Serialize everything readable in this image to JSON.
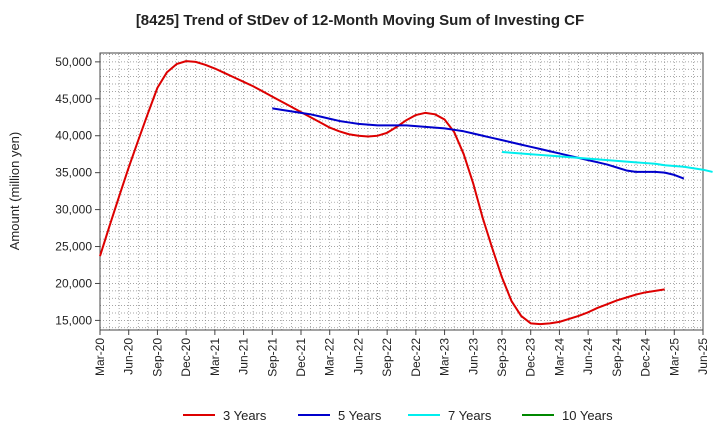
{
  "chart_data": {
    "type": "line",
    "title": "[8425]  Trend of StDev of 12-Month Moving Sum of Investing CF",
    "ylabel": "Amount (million yen)",
    "xlabel": "",
    "ylim": [
      13700,
      51200
    ],
    "y_ticks": [
      15000,
      20000,
      25000,
      30000,
      35000,
      40000,
      45000,
      50000
    ],
    "y_tick_labels": [
      "15,000",
      "20,000",
      "25,000",
      "30,000",
      "35,000",
      "40,000",
      "45,000",
      "50,000"
    ],
    "x_ticks": [
      "Mar-20",
      "Jun-20",
      "Sep-20",
      "Dec-20",
      "Mar-21",
      "Jun-21",
      "Sep-21",
      "Dec-21",
      "Mar-22",
      "Jun-22",
      "Sep-22",
      "Dec-22",
      "Mar-23",
      "Jun-23",
      "Sep-23",
      "Dec-23",
      "Mar-24",
      "Jun-24",
      "Sep-24",
      "Dec-24",
      "Mar-25",
      "Jun-25"
    ],
    "grid": true,
    "legend_position": "bottom",
    "series": [
      {
        "name": "3 Years",
        "color": "#dd0000",
        "start": "Mar-20",
        "values": [
          23700,
          27800,
          31800,
          35700,
          39400,
          43000,
          46500,
          48600,
          49700,
          50100,
          50000,
          49600,
          49100,
          48500,
          47900,
          47300,
          46700,
          46000,
          45300,
          44600,
          43900,
          43200,
          42500,
          41800,
          41100,
          40600,
          40200,
          40000,
          39900,
          40000,
          40400,
          41200,
          42100,
          42800,
          43100,
          42900,
          42200,
          40500,
          37500,
          33500,
          28800,
          24700,
          20800,
          17600,
          15600,
          14600,
          14500,
          14600,
          14800,
          15200,
          15600,
          16100,
          16700,
          17200,
          17700,
          18100,
          18500,
          18800,
          19000,
          19200
        ]
      },
      {
        "name": "5 Years",
        "color": "#0000cc",
        "start": "Sep-21",
        "values": [
          43700,
          43500,
          43300,
          43100,
          42900,
          42600,
          42300,
          42000,
          41800,
          41600,
          41500,
          41400,
          41400,
          41400,
          41400,
          41300,
          41200,
          41100,
          41000,
          40800,
          40600,
          40300,
          40000,
          39700,
          39400,
          39100,
          38800,
          38500,
          38200,
          37900,
          37600,
          37300,
          37000,
          36700,
          36400,
          36100,
          35700,
          35300,
          35100,
          35100,
          35100,
          35000,
          34700,
          34200
        ]
      },
      {
        "name": "7 Years",
        "color": "#00eeee",
        "start": "Sep-23",
        "values": [
          37800,
          37700,
          37600,
          37500,
          37400,
          37300,
          37200,
          37100,
          37000,
          36900,
          36800,
          36700,
          36600,
          36500,
          36400,
          36300,
          36200,
          36000,
          35900,
          35800,
          35600,
          35400,
          35100
        ]
      },
      {
        "name": "10 Years",
        "color": "#008800",
        "start": "Mar-25",
        "values": []
      }
    ]
  }
}
